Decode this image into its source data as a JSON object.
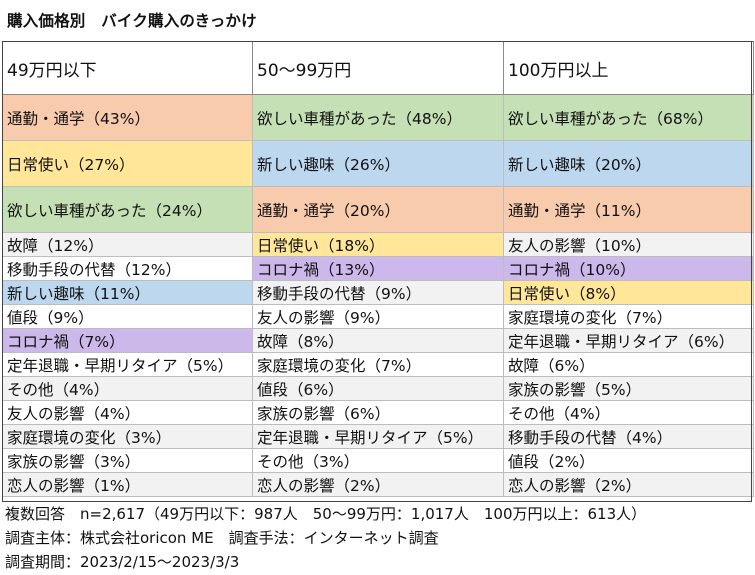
{
  "title": "購入価格別　バイク購入のきっかけ",
  "colors": {
    "通勤・通学": "#f8cbad",
    "欲しい車種があった": "#c5e0b4",
    "日常使い": "#ffe699",
    "新しい趣味": "#bdd7ee",
    "コロナ禍": "#ccb8ea",
    "default_odd": "#ffffff",
    "default_even": "#f2f2f2"
  },
  "chart_data": {
    "type": "table",
    "columns": [
      "49万円以下",
      "50～99万円",
      "100万円以上"
    ],
    "rows": [
      [
        {
          "label": "通勤・通学",
          "pct": 43
        },
        {
          "label": "欲しい車種があった",
          "pct": 48
        },
        {
          "label": "欲しい車種があった",
          "pct": 68
        }
      ],
      [
        {
          "label": "日常使い",
          "pct": 27
        },
        {
          "label": "新しい趣味",
          "pct": 26
        },
        {
          "label": "新しい趣味",
          "pct": 20
        }
      ],
      [
        {
          "label": "欲しい車種があった",
          "pct": 24
        },
        {
          "label": "通勤・通学",
          "pct": 20
        },
        {
          "label": "通勤・通学",
          "pct": 11
        }
      ],
      [
        {
          "label": "故障",
          "pct": 12
        },
        {
          "label": "日常使い",
          "pct": 18
        },
        {
          "label": "友人の影響",
          "pct": 10
        }
      ],
      [
        {
          "label": "移動手段の代替",
          "pct": 12
        },
        {
          "label": "コロナ禍",
          "pct": 13
        },
        {
          "label": "コロナ禍",
          "pct": 10
        }
      ],
      [
        {
          "label": "新しい趣味",
          "pct": 11
        },
        {
          "label": "移動手段の代替",
          "pct": 9
        },
        {
          "label": "日常使い",
          "pct": 8
        }
      ],
      [
        {
          "label": "値段",
          "pct": 9
        },
        {
          "label": "友人の影響",
          "pct": 9
        },
        {
          "label": "家庭環境の変化",
          "pct": 7
        }
      ],
      [
        {
          "label": "コロナ禍",
          "pct": 7
        },
        {
          "label": "故障",
          "pct": 8
        },
        {
          "label": "定年退職・早期リタイア",
          "pct": 6
        }
      ],
      [
        {
          "label": "定年退職・早期リタイア",
          "pct": 5
        },
        {
          "label": "家庭環境の変化",
          "pct": 7
        },
        {
          "label": "故障",
          "pct": 6
        }
      ],
      [
        {
          "label": "その他",
          "pct": 4
        },
        {
          "label": "値段",
          "pct": 6
        },
        {
          "label": "家族の影響",
          "pct": 5
        }
      ],
      [
        {
          "label": "友人の影響",
          "pct": 4
        },
        {
          "label": "家族の影響",
          "pct": 6
        },
        {
          "label": "その他",
          "pct": 4
        }
      ],
      [
        {
          "label": "家庭環境の変化",
          "pct": 3
        },
        {
          "label": "定年退職・早期リタイア",
          "pct": 5
        },
        {
          "label": "移動手段の代替",
          "pct": 4
        }
      ],
      [
        {
          "label": "家族の影響",
          "pct": 3
        },
        {
          "label": "その他",
          "pct": 3
        },
        {
          "label": "値段",
          "pct": 2
        }
      ],
      [
        {
          "label": "恋人の影響",
          "pct": 1
        },
        {
          "label": "恋人の影響",
          "pct": 2
        },
        {
          "label": "恋人の影響",
          "pct": 2
        }
      ]
    ]
  },
  "footer": {
    "line1": "複数回答　n=2,617（49万円以下：987人　50～99万円：1,017人　100万円以上：613人）",
    "line2": "調査主体：株式会社oricon ME　調査手法：インターネット調査",
    "line3": "調査期間：2023/2/15～2023/3/3"
  }
}
